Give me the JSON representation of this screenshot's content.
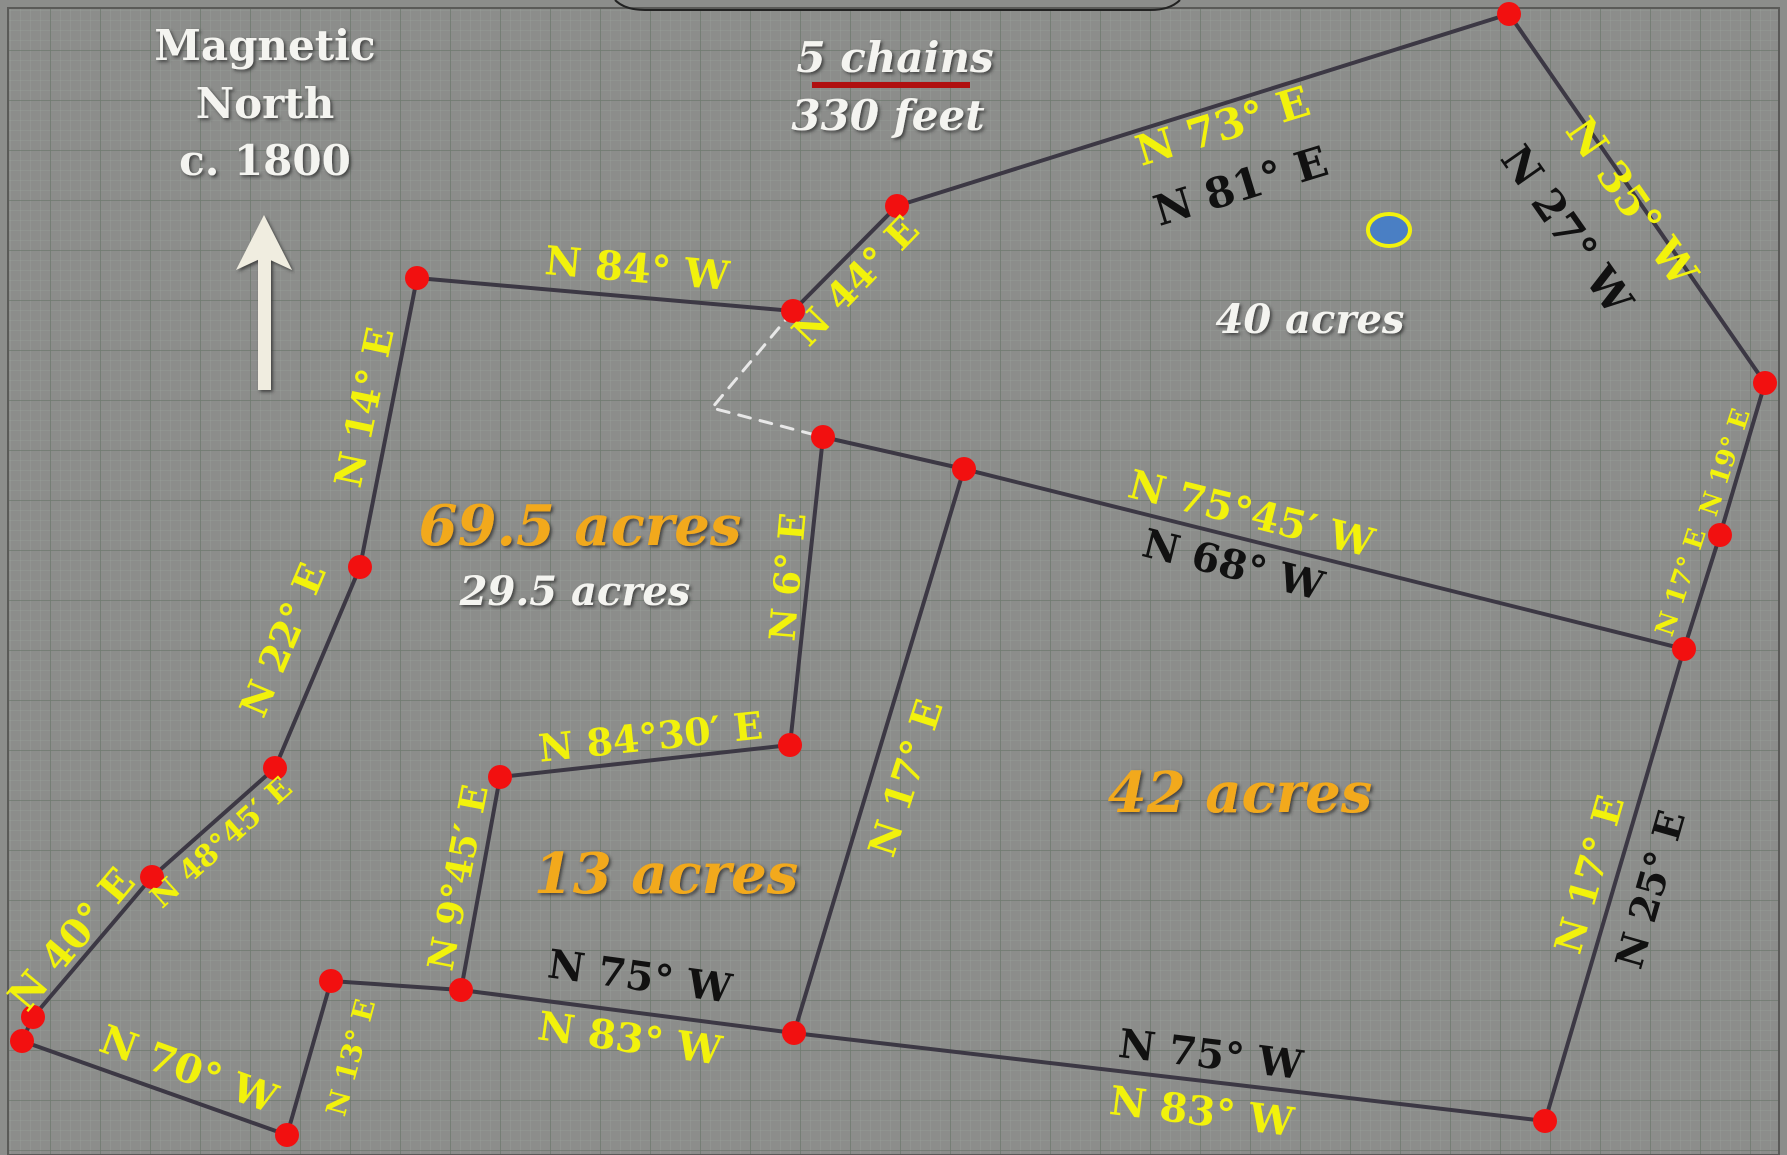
{
  "colors": {
    "paper": "#8c8d8b",
    "grid_major": "#6f7a6f",
    "grid_minor": "#98a09a",
    "boundary_line": "#3c3844",
    "corner_marker": "#f21010",
    "label_yellow": "#f2f20c",
    "label_black": "#111111",
    "label_white": "#f4f4f0",
    "label_orange": "#f2a91c",
    "scale_bar": "#b01010",
    "well_marker_fill": "#4a7fc4",
    "well_marker_ring": "#f2f20c"
  },
  "north": {
    "line1": "Magnetic",
    "line2": "North",
    "line3": "c. 1800",
    "arrow_icon": "north-arrow-icon"
  },
  "scale": {
    "chains": "5 chains",
    "feet": "330 feet"
  },
  "bearings": {
    "top_new": "N 73° E",
    "top_old": "N 81° E",
    "ne_new": "N 35° W",
    "ne_old": "N 27° W",
    "n44e": "N 44° E",
    "n84w": "N 84° W",
    "n14e": "N 14° E",
    "n22e": "N 22° E",
    "n4845e": "N 48°45′ E",
    "n40e": "N 40° E",
    "n70w": "N 70° W",
    "n13e": "N 13° E",
    "n945e": "N 9°45′ E",
    "n8430e": "N 84°30′ E",
    "n6e": "N 6° E",
    "n17e_mid": "N 17° E",
    "mid_new": "N 75°45′ W",
    "mid_old": "N 68° W",
    "n19e": "N 19° E",
    "n17e_small": "N 17° E",
    "e_new": "N 17° E",
    "e_old": "N 25° E",
    "bottom_left_old": "N 75° W",
    "bottom_left_new": "N 83° W",
    "bottom_right_old": "N 75° W",
    "bottom_right_new": "N 83° W"
  },
  "areas": {
    "a40": "40 acres",
    "a69": "69.5 acres",
    "a29": "29.5 acres",
    "a13": "13 acres",
    "a42": "42 acres"
  }
}
